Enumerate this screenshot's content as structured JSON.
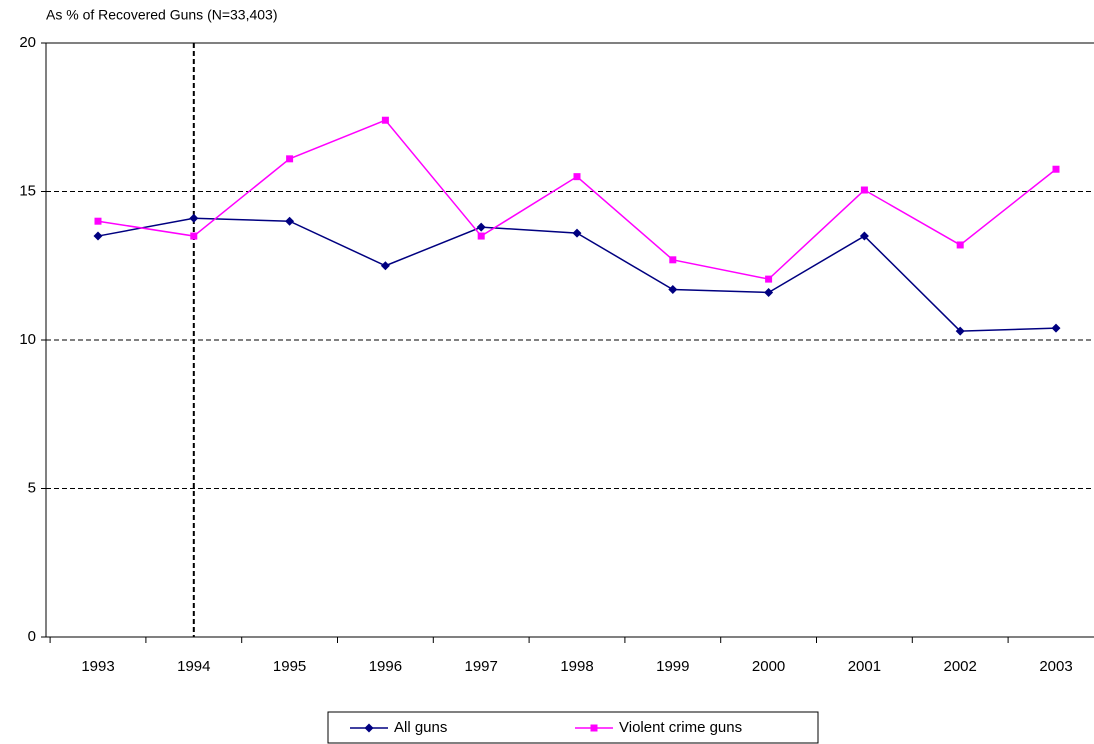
{
  "chart_data": {
    "type": "line",
    "title": "As % of Recovered Guns (N=33,403)",
    "categories": [
      "1993",
      "1994",
      "1995",
      "1996",
      "1997",
      "1998",
      "1999",
      "2000",
      "2001",
      "2002",
      "2003"
    ],
    "series": [
      {
        "name": "All guns",
        "color": "#000080",
        "marker": "diamond",
        "values": [
          13.5,
          14.1,
          14.0,
          12.5,
          13.8,
          13.6,
          11.7,
          11.6,
          13.5,
          10.3,
          10.4
        ]
      },
      {
        "name": "Violent crime guns",
        "color": "#ff00ff",
        "marker": "square",
        "values": [
          14.0,
          13.5,
          16.1,
          17.4,
          13.5,
          15.5,
          12.7,
          12.05,
          15.05,
          13.2,
          15.75
        ]
      }
    ],
    "ylim": [
      0,
      20
    ],
    "yticks": [
      0,
      5,
      10,
      15,
      20
    ],
    "grid": true,
    "legend": "bottom"
  }
}
